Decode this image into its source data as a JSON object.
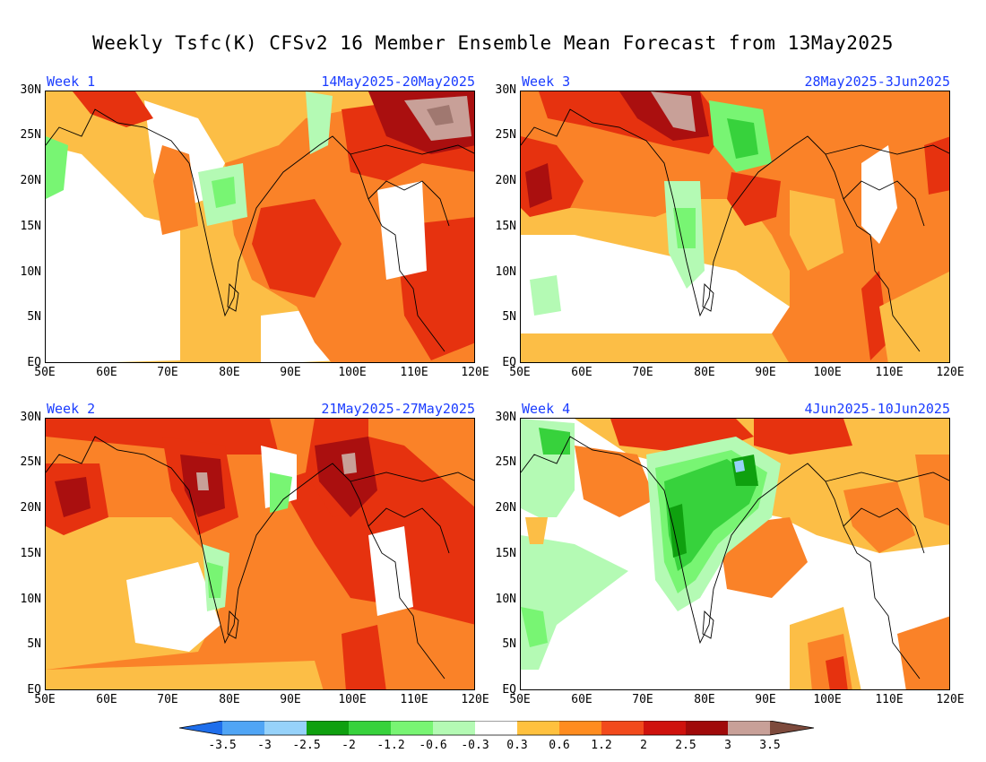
{
  "title": "Weekly Tsfc(K) CFSv2 16 Member Ensemble Mean Forecast from 13May2025",
  "panels": [
    {
      "week": "Week 1",
      "dates": "14May2025-20May2025"
    },
    {
      "week": "Week 3",
      "dates": "28May2025-3Jun2025"
    },
    {
      "week": "Week 2",
      "dates": "21May2025-27May2025"
    },
    {
      "week": "Week 4",
      "dates": "4Jun2025-10Jun2025"
    }
  ],
  "axes": {
    "lat_labels": [
      "30N",
      "25N",
      "20N",
      "15N",
      "10N",
      "5N",
      "EQ"
    ],
    "lon_labels": [
      "50E",
      "60E",
      "70E",
      "80E",
      "90E",
      "100E",
      "110E",
      "120E"
    ]
  },
  "legend": {
    "labels": [
      "-3.5",
      "-3",
      "-2.5",
      "-2",
      "-1.2",
      "-0.6",
      "-0.3",
      "0.3",
      "0.6",
      "1.2",
      "2",
      "2.5",
      "3",
      "3.5"
    ],
    "colors": [
      "#1e6eeb",
      "#50a5f5",
      "#96d2fa",
      "#0fa00f",
      "#37d23c",
      "#78f573",
      "#b4fab4",
      "#ffffff",
      "#ffc13e",
      "#ff8c1f",
      "#f24a1c",
      "#cf120d",
      "#a00a0a",
      "#c8a098",
      "#a07a70",
      "#7d4a3c"
    ]
  },
  "colors": {
    "yellow": "#fcbe46",
    "orange": "#fa8228",
    "red": "#e6320f",
    "darkred": "#aa0f0f",
    "pink": "#c8a098",
    "brown": "#a07870",
    "lightgreen": "#b4fab4",
    "green": "#78f573",
    "midgreen": "#37d23c",
    "darkgreen": "#0fa00f",
    "lightblue": "#96d2fa",
    "header_text": "#1a3cff"
  }
}
